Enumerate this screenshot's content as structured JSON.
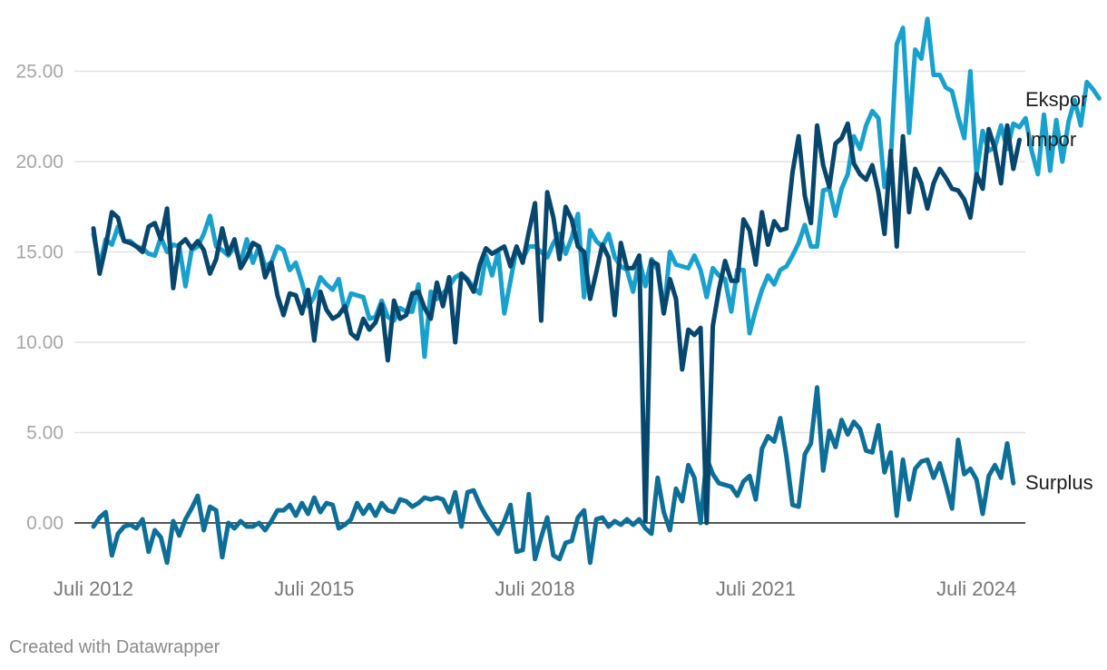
{
  "chart_data": {
    "type": "line",
    "title": "",
    "xlabel": "",
    "ylabel": "",
    "ylim": [
      -2.5,
      27.8
    ],
    "yticks": [
      "0.00",
      "5.00",
      "10.00",
      "15.00",
      "20.00",
      "25.00"
    ],
    "ytick_values": [
      0,
      5,
      10,
      15,
      20,
      25
    ],
    "xticks": [
      {
        "label": "Juli 2012",
        "x": 2012.5
      },
      {
        "label": "Juli 2015",
        "x": 2015.5
      },
      {
        "label": "Juli 2018",
        "x": 2018.5
      },
      {
        "label": "Juli 2021",
        "x": 2021.5
      },
      {
        "label": "Juli 2024",
        "x": 2024.5
      }
    ],
    "x_start": 2012.5,
    "x_step_months": 1,
    "grid": true,
    "legend": "inline labels at right end of lines",
    "series": [
      {
        "name": "Ekspor",
        "color": "#18a1cd",
        "values": [
          16.0,
          14.2,
          15.7,
          15.4,
          16.4,
          15.6,
          15.6,
          15.3,
          15.2,
          14.9,
          14.8,
          15.8,
          15.0,
          15.4,
          15.3,
          13.1,
          15.1,
          15.3,
          16.0,
          17.0,
          15.3,
          15.1,
          14.8,
          15.3,
          14.4,
          15.7,
          14.4,
          15.3,
          14.2,
          14.4,
          15.3,
          15.1,
          14.0,
          14.4,
          13.3,
          12.0,
          12.5,
          13.6,
          13.2,
          12.9,
          13.5,
          11.7,
          12.7,
          12.6,
          12.5,
          11.3,
          11.4,
          12.3,
          11.4,
          11.2,
          11.9,
          11.7,
          11.7,
          13.2,
          9.2,
          12.8,
          12.4,
          12.7,
          13.1,
          13.6,
          13.8,
          13.5,
          13.0,
          12.7,
          14.8,
          13.7,
          15.0,
          11.6,
          13.4,
          15.2,
          14.6,
          15.3,
          15.3,
          15.0,
          14.7,
          15.5,
          16.0,
          14.9,
          15.8,
          17.1,
          12.5,
          16.2,
          15.6,
          15.3,
          16.0,
          14.7,
          14.2,
          14.0,
          12.8,
          14.6,
          13.1,
          14.6,
          14.0,
          11.6,
          15.0,
          14.3,
          14.2,
          14.1,
          14.8,
          14.0,
          12.5,
          14.1,
          13.7,
          13.5,
          11.7,
          14.0,
          14.0,
          10.5,
          11.8,
          12.9,
          13.7,
          13.2,
          14.0,
          14.2,
          14.8,
          15.5,
          16.5,
          15.3,
          15.3,
          18.4,
          18.5,
          17.0,
          18.5,
          19.3,
          21.4,
          20.7,
          22.0,
          22.8,
          22.4,
          18.6,
          20.0,
          26.5,
          27.4,
          21.6,
          26.2,
          25.7,
          27.9,
          24.8,
          24.8,
          24.1,
          23.9,
          22.5,
          21.3,
          25.0,
          19.3,
          21.7,
          20.6,
          20.8,
          22.0,
          20.7,
          22.1,
          21.9,
          22.4,
          20.6,
          19.3,
          22.6,
          19.5,
          22.3,
          20.0,
          22.2,
          23.4,
          22.0,
          24.4,
          24.0,
          23.5
        ]
      },
      {
        "name": "Impor",
        "color": "#07476d",
        "values": [
          16.3,
          13.8,
          15.3,
          17.2,
          16.9,
          15.6,
          15.5,
          15.3,
          15.0,
          16.4,
          16.6,
          15.7,
          17.4,
          13.0,
          15.4,
          15.7,
          15.2,
          15.6,
          15.1,
          13.8,
          14.6,
          16.3,
          14.9,
          15.7,
          14.1,
          14.7,
          15.5,
          15.3,
          13.6,
          14.4,
          12.6,
          11.5,
          12.7,
          12.6,
          11.6,
          12.9,
          10.1,
          12.8,
          11.8,
          11.3,
          11.5,
          12.0,
          10.5,
          10.2,
          11.3,
          10.7,
          11.1,
          12.1,
          9.0,
          12.3,
          11.3,
          11.5,
          12.7,
          12.8,
          11.9,
          11.3,
          13.3,
          12.0,
          13.6,
          10.0,
          13.8,
          13.4,
          12.8,
          14.3,
          15.2,
          14.9,
          15.1,
          15.3,
          14.2,
          15.3,
          14.4,
          16.1,
          17.7,
          11.2,
          18.3,
          16.9,
          14.6,
          17.5,
          16.8,
          15.3,
          15.0,
          12.4,
          13.9,
          15.4,
          14.7,
          11.5,
          15.5,
          14.1,
          14.1,
          14.8,
          0.1,
          14.5,
          14.3,
          11.6,
          13.5,
          12.4,
          8.5,
          10.7,
          10.4,
          10.8,
          0.0,
          10.9,
          12.9,
          14.5,
          13.4,
          13.4,
          16.8,
          16.2,
          14.3,
          17.2,
          15.4,
          16.7,
          16.2,
          16.3,
          19.4,
          21.4,
          18.1,
          16.6,
          22.0,
          19.8,
          18.6,
          21.0,
          21.3,
          22.1,
          19.9,
          19.3,
          19.0,
          19.8,
          18.3,
          16.0,
          20.6,
          15.3,
          21.4,
          17.2,
          19.6,
          18.8,
          17.4,
          18.8,
          19.6,
          19.1,
          18.5,
          18.4,
          17.9,
          16.9,
          19.3,
          18.5,
          21.8,
          20.7,
          18.8,
          22.0,
          19.6,
          21.2
        ]
      },
      {
        "name": "Surplus",
        "color": "#0d6e97",
        "values": [
          -0.2,
          0.3,
          0.6,
          -1.8,
          -0.6,
          -0.2,
          -0.1,
          -0.3,
          0.2,
          -1.6,
          -0.4,
          -0.8,
          -2.2,
          0.1,
          -0.7,
          0.2,
          0.8,
          1.5,
          -0.4,
          0.9,
          0.7,
          -1.9,
          0.0,
          -0.3,
          0.1,
          -0.2,
          -0.2,
          0.0,
          -0.4,
          0.1,
          0.7,
          0.7,
          1.0,
          0.4,
          1.1,
          0.5,
          1.4,
          0.6,
          1.1,
          1.0,
          -0.3,
          -0.1,
          0.2,
          1.1,
          0.5,
          1.0,
          0.4,
          1.1,
          0.7,
          0.6,
          1.3,
          1.2,
          0.9,
          1.1,
          1.4,
          1.3,
          1.4,
          1.3,
          0.6,
          1.7,
          -0.2,
          1.7,
          1.8,
          1.0,
          0.4,
          -0.1,
          -0.6,
          0.1,
          1.0,
          -1.6,
          -1.5,
          1.6,
          -2.0,
          -0.8,
          0.3,
          -1.8,
          -2.0,
          -1.1,
          -1.0,
          0.3,
          0.7,
          -2.2,
          0.2,
          0.3,
          -0.2,
          0.1,
          -0.1,
          0.2,
          -0.1,
          0.2,
          -0.3,
          -0.6,
          2.5,
          0.6,
          -0.4,
          1.9,
          1.2,
          3.2,
          2.5,
          0.0,
          3.6,
          2.7,
          2.2,
          2.1,
          2.0,
          1.5,
          2.3,
          2.6,
          1.3,
          4.1,
          4.8,
          4.5,
          5.8,
          3.7,
          1.0,
          0.9,
          3.8,
          4.4,
          7.5,
          2.9,
          5.1,
          4.2,
          5.7,
          4.9,
          5.6,
          5.2,
          4.0,
          3.9,
          5.4,
          2.8,
          3.9,
          0.4,
          3.5,
          1.3,
          3.0,
          3.4,
          3.5,
          2.5,
          3.3,
          2.1,
          0.8,
          4.6,
          2.7,
          3.0,
          2.4,
          0.5,
          2.6,
          3.2,
          2.5,
          4.4,
          2.2
        ]
      }
    ]
  },
  "credit": "Created with Datawrapper"
}
